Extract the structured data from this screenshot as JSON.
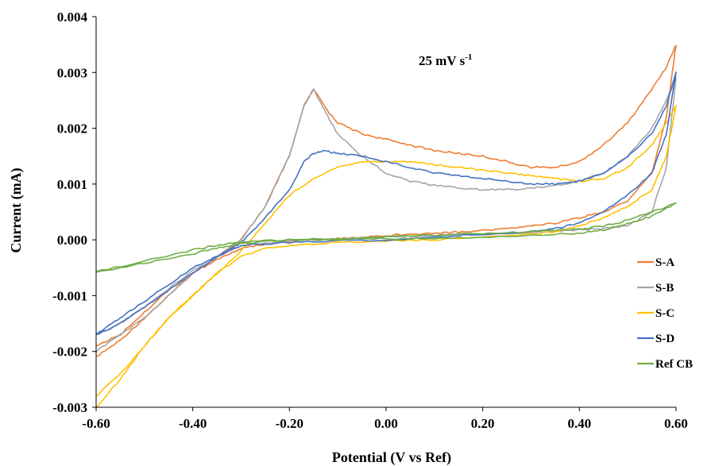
{
  "chart_data": {
    "type": "line",
    "xlabel": "Potential (V vs Ref)",
    "ylabel": "Current (mA)",
    "xlim": [
      -0.6,
      0.6
    ],
    "ylim": [
      -0.003,
      0.004
    ],
    "x_ticks": [
      -0.6,
      -0.4,
      -0.2,
      0.0,
      0.2,
      0.4,
      0.6
    ],
    "x_tick_labels": [
      "-0.60",
      "-0.40",
      "-0.20",
      "0.00",
      "0.20",
      "0.40",
      "0.60"
    ],
    "y_ticks": [
      -0.003,
      -0.002,
      -0.001,
      0.0,
      0.001,
      0.002,
      0.003,
      0.004
    ],
    "y_tick_labels": [
      "-0.003",
      "-0.002",
      "-0.001",
      "0.000",
      "0.001",
      "0.002",
      "0.003",
      "0.004"
    ],
    "annotation": {
      "main": "25 mV s",
      "sup": "-1"
    },
    "grid": false,
    "legend_position": "right",
    "series": [
      {
        "name": "S-A",
        "color": "#ED7D31",
        "x": [
          -0.6,
          -0.55,
          -0.5,
          -0.45,
          -0.4,
          -0.35,
          -0.3,
          -0.25,
          -0.2,
          -0.17,
          -0.15,
          -0.12,
          -0.1,
          -0.05,
          0.0,
          0.05,
          0.1,
          0.15,
          0.2,
          0.25,
          0.3,
          0.35,
          0.4,
          0.45,
          0.5,
          0.55,
          0.58,
          0.6,
          0.58,
          0.55,
          0.5,
          0.45,
          0.4,
          0.35,
          0.3,
          0.25,
          0.2,
          0.15,
          0.1,
          0.05,
          0.0,
          -0.05,
          -0.1,
          -0.15,
          -0.2,
          -0.25,
          -0.3,
          -0.35,
          -0.4,
          -0.45,
          -0.5,
          -0.55,
          -0.6
        ],
        "y": [
          -0.0021,
          -0.0018,
          -0.0014,
          -0.001,
          -0.0006,
          -0.0003,
          0.0,
          0.0006,
          0.0015,
          0.0024,
          0.0027,
          0.0023,
          0.0021,
          0.0019,
          0.0018,
          0.0017,
          0.0016,
          0.00155,
          0.0015,
          0.0014,
          0.0013,
          0.0013,
          0.0014,
          0.0017,
          0.0021,
          0.0027,
          0.0031,
          0.0035,
          0.0022,
          0.0012,
          0.0007,
          0.0005,
          0.0004,
          0.0003,
          0.00025,
          0.0002,
          0.00017,
          0.00014,
          0.00012,
          0.0001,
          8e-05,
          5e-05,
          3e-05,
          1e-05,
          -2e-05,
          -8e-05,
          -0.00015,
          -0.00035,
          -0.0006,
          -0.0009,
          -0.0013,
          -0.0017,
          -0.0019
        ]
      },
      {
        "name": "S-B",
        "color": "#A5A5A5",
        "x": [
          -0.6,
          -0.55,
          -0.5,
          -0.45,
          -0.4,
          -0.35,
          -0.3,
          -0.25,
          -0.2,
          -0.17,
          -0.15,
          -0.12,
          -0.1,
          -0.05,
          0.0,
          0.05,
          0.1,
          0.15,
          0.2,
          0.25,
          0.3,
          0.35,
          0.4,
          0.45,
          0.5,
          0.55,
          0.58,
          0.6,
          0.58,
          0.55,
          0.5,
          0.45,
          0.4,
          0.35,
          0.3,
          0.2,
          0.1,
          0.0,
          -0.1,
          -0.2,
          -0.3,
          -0.4,
          -0.5,
          -0.55,
          -0.6
        ],
        "y": [
          -0.002,
          -0.0017,
          -0.0014,
          -0.001,
          -0.0006,
          -0.0003,
          0.0,
          0.0006,
          0.0015,
          0.0024,
          0.0027,
          0.0022,
          0.0019,
          0.0015,
          0.0012,
          0.00105,
          0.00098,
          0.00093,
          0.0009,
          0.0009,
          0.00092,
          0.00098,
          0.00105,
          0.0012,
          0.0015,
          0.002,
          0.0025,
          0.0029,
          0.0013,
          0.0005,
          0.00025,
          0.0002,
          0.00018,
          0.00015,
          0.00013,
          0.0001,
          8e-05,
          5e-05,
          2e-05,
          -2e-05,
          -0.0001,
          -0.00055,
          -0.0012,
          -0.0015,
          -0.0017
        ]
      },
      {
        "name": "S-C",
        "color": "#FFC000",
        "x": [
          -0.6,
          -0.55,
          -0.5,
          -0.45,
          -0.4,
          -0.35,
          -0.3,
          -0.25,
          -0.2,
          -0.15,
          -0.1,
          -0.05,
          0.0,
          0.05,
          0.1,
          0.15,
          0.2,
          0.25,
          0.3,
          0.35,
          0.4,
          0.45,
          0.5,
          0.55,
          0.58,
          0.6,
          0.58,
          0.55,
          0.5,
          0.45,
          0.4,
          0.35,
          0.3,
          0.2,
          0.1,
          0.0,
          -0.1,
          -0.2,
          -0.25,
          -0.3,
          -0.35,
          -0.4,
          -0.45,
          -0.5,
          -0.55,
          -0.6
        ],
        "y": [
          -0.003,
          -0.0025,
          -0.0019,
          -0.0014,
          -0.001,
          -0.0006,
          -0.0002,
          0.0003,
          0.0008,
          0.0011,
          0.0013,
          0.0014,
          0.0014,
          0.0014,
          0.00135,
          0.0013,
          0.00125,
          0.0012,
          0.00115,
          0.0011,
          0.00105,
          0.0011,
          0.0013,
          0.0017,
          0.0021,
          0.0024,
          0.0015,
          0.0009,
          0.0006,
          0.0004,
          0.00025,
          0.00015,
          0.0001,
          5e-05,
          0.0,
          -2e-05,
          -5e-05,
          -0.0001,
          -0.00015,
          -0.0003,
          -0.0006,
          -0.001,
          -0.0014,
          -0.0019,
          -0.0024,
          -0.0028
        ]
      },
      {
        "name": "S-D",
        "color": "#4472C4",
        "x": [
          -0.6,
          -0.55,
          -0.5,
          -0.45,
          -0.4,
          -0.35,
          -0.3,
          -0.25,
          -0.2,
          -0.17,
          -0.15,
          -0.13,
          -0.1,
          -0.05,
          0.0,
          0.05,
          0.1,
          0.15,
          0.2,
          0.25,
          0.3,
          0.35,
          0.4,
          0.45,
          0.5,
          0.55,
          0.58,
          0.6,
          0.58,
          0.55,
          0.5,
          0.45,
          0.4,
          0.35,
          0.3,
          0.2,
          0.1,
          0.0,
          -0.1,
          -0.2,
          -0.3,
          -0.35,
          -0.4,
          -0.45,
          -0.5,
          -0.55,
          -0.6
        ],
        "y": [
          -0.0017,
          -0.0015,
          -0.0012,
          -0.0009,
          -0.0006,
          -0.0003,
          -5e-05,
          0.0004,
          0.0009,
          0.0014,
          0.00155,
          0.0016,
          0.00155,
          0.0015,
          0.0014,
          0.0013,
          0.0012,
          0.00115,
          0.0011,
          0.00105,
          0.001,
          0.001,
          0.00105,
          0.0012,
          0.0015,
          0.0019,
          0.0024,
          0.003,
          0.0019,
          0.0012,
          0.0008,
          0.0005,
          0.0003,
          0.0002,
          0.00015,
          0.0001,
          5e-05,
          0.0,
          -2e-05,
          -5e-05,
          -0.0001,
          -0.0003,
          -0.0005,
          -0.0008,
          -0.0011,
          -0.0014,
          -0.0017
        ]
      },
      {
        "name": "Ref CB",
        "color": "#70AD47",
        "x": [
          -0.6,
          -0.5,
          -0.4,
          -0.35,
          -0.3,
          -0.2,
          -0.1,
          0.0,
          0.1,
          0.2,
          0.3,
          0.4,
          0.45,
          0.5,
          0.55,
          0.6,
          0.55,
          0.5,
          0.45,
          0.4,
          0.3,
          0.2,
          0.1,
          0.0,
          -0.1,
          -0.2,
          -0.3,
          -0.35,
          -0.4,
          -0.5,
          -0.6
        ],
        "y": [
          -0.00057,
          -0.00042,
          -0.00025,
          -0.00015,
          -7e-05,
          0.0,
          2e-05,
          6e-05,
          9e-05,
          0.00012,
          0.00015,
          0.00019,
          0.00025,
          0.00035,
          0.0005,
          0.00065,
          0.00042,
          0.0003,
          0.00018,
          0.00012,
          8e-05,
          5e-05,
          3e-05,
          2e-05,
          1e-05,
          0.0,
          -4e-05,
          -0.0001,
          -0.00018,
          -0.00038,
          -0.00057
        ]
      }
    ]
  }
}
